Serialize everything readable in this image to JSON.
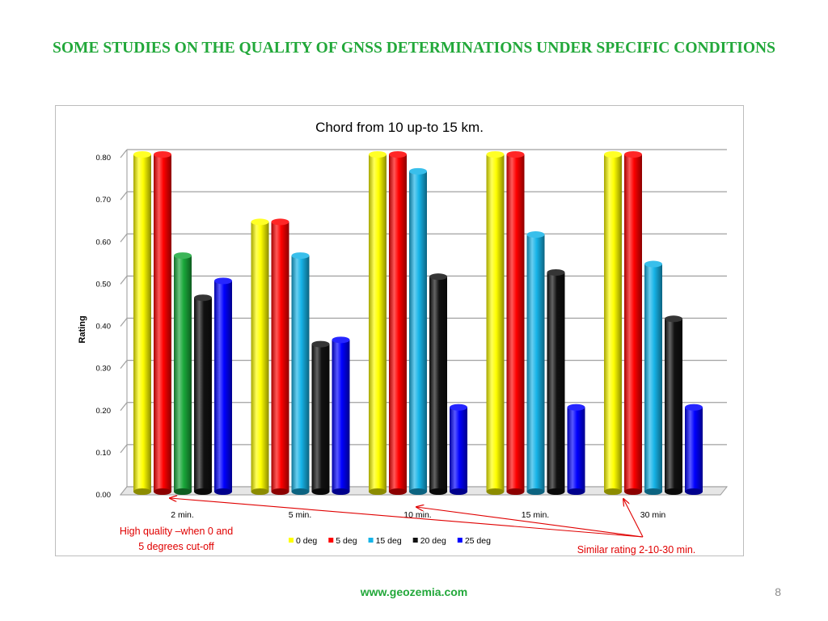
{
  "slide": {
    "title": "SOME STUDIES ON THE QUALITY OF GNSS DETERMINATIONS UNDER SPECIFIC CONDITIONS",
    "footer_url": "www.geozemia.com",
    "page_number": "8"
  },
  "chart_data": {
    "type": "bar",
    "title": "Chord from 10 up-to 15 km.",
    "xlabel": "",
    "ylabel": "Rating",
    "ylim": [
      0,
      0.8
    ],
    "yticks": [
      "0.00",
      "0.10",
      "0.20",
      "0.30",
      "0.40",
      "0.50",
      "0.60",
      "0.70",
      "0.80"
    ],
    "grid": true,
    "legend_position": "bottom",
    "categories": [
      "2 min.",
      "5 min.",
      "10 min.",
      "15 min.",
      "30 min"
    ],
    "series": [
      {
        "name": "0 deg",
        "color": "#ffff00",
        "values": [
          0.8,
          0.64,
          0.8,
          0.8,
          0.8
        ]
      },
      {
        "name": "5 deg",
        "color": "#ff0000",
        "values": [
          0.8,
          0.64,
          0.8,
          0.8,
          0.8
        ]
      },
      {
        "name": "15 deg",
        "color": "#16b4e8",
        "values": [
          0.56,
          0.56,
          0.76,
          0.61,
          0.54
        ]
      },
      {
        "name": "20 deg",
        "color": "#111111",
        "values": [
          0.46,
          0.35,
          0.51,
          0.52,
          0.41
        ]
      },
      {
        "name": "25 deg",
        "color": "#0000ff",
        "values": [
          0.5,
          0.36,
          0.2,
          0.2,
          0.2
        ]
      }
    ],
    "point_color_overrides": [
      {
        "series": 2,
        "category": 0,
        "color": "#1aa83a"
      }
    ],
    "annotations": [
      {
        "text": "High quality –when 0 and 5 degrees cut-off",
        "color": "#e00000"
      },
      {
        "text": "Similar rating 2-10-30 min.",
        "color": "#e00000"
      }
    ]
  }
}
